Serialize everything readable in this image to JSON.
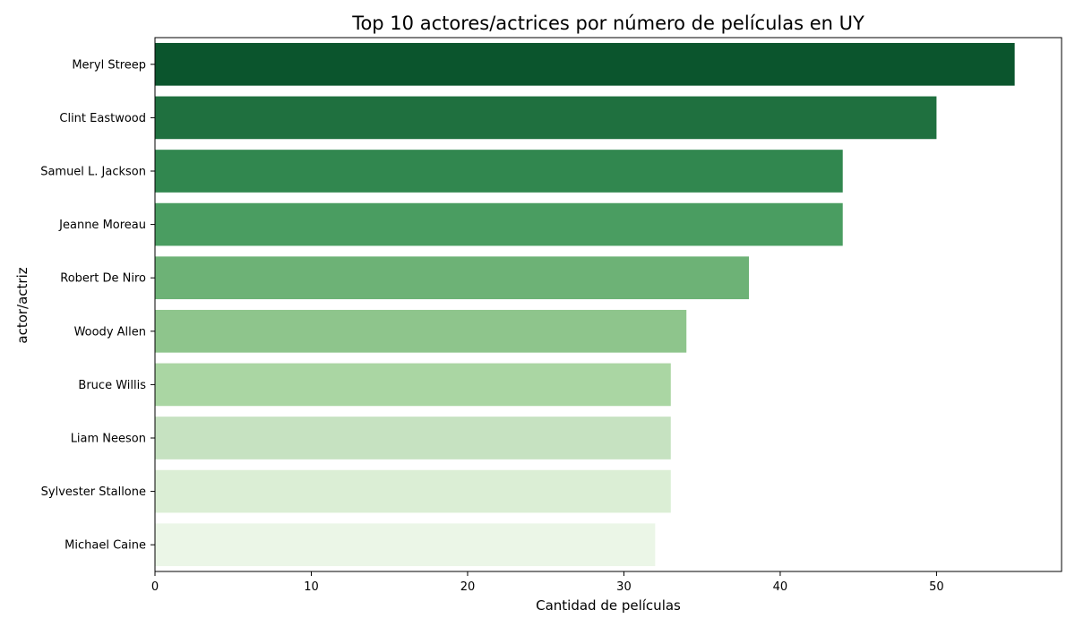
{
  "chart_data": {
    "type": "bar",
    "orientation": "horizontal",
    "title": "Top 10 actores/actrices por número de películas en UY",
    "xlabel": "Cantidad de películas",
    "ylabel": "actor/actriz",
    "xlim": [
      0,
      58
    ],
    "xticks": [
      0,
      10,
      20,
      30,
      40,
      50
    ],
    "grid": false,
    "categories": [
      "Meryl Streep",
      "Clint Eastwood",
      "Samuel L. Jackson",
      "Jeanne Moreau",
      "Robert De Niro",
      "Woody Allen",
      "Bruce Willis",
      "Liam Neeson",
      "Sylvester Stallone",
      "Michael Caine"
    ],
    "values": [
      55,
      50,
      44,
      44,
      38,
      34,
      33,
      33,
      33,
      32
    ],
    "colors": [
      "#0b552d",
      "#1f703f",
      "#31874f",
      "#4a9d61",
      "#6db276",
      "#8ec58c",
      "#aad6a3",
      "#c6e2c1",
      "#dbeed5",
      "#ebf6e7"
    ]
  }
}
